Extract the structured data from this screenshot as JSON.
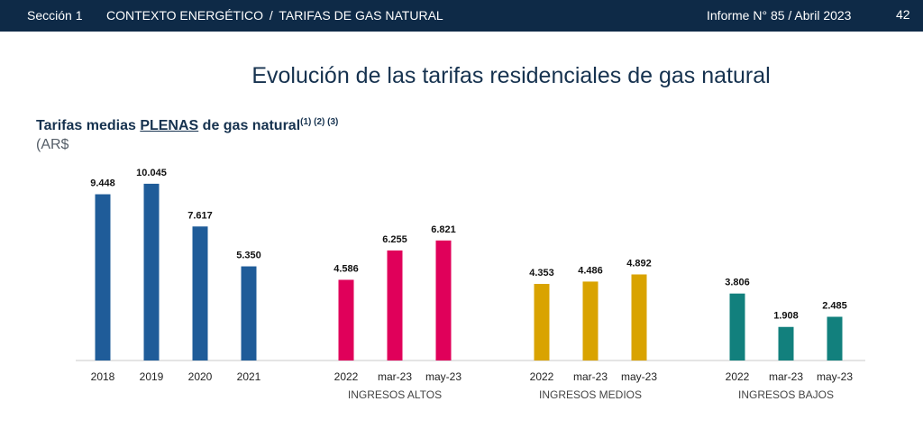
{
  "header": {
    "section": "Sección 1",
    "context": "CONTEXTO ENERGÉTICO",
    "separator": "/",
    "topic": "TARIFAS DE GAS NATURAL",
    "report": "Informe N° 85 / Abril 2023",
    "page_number": "42"
  },
  "page_title": "Evolución de las tarifas residenciales de gas natural",
  "chart_header": {
    "title_prefix": "Tarifas medias ",
    "title_emphasis": "PLENAS",
    "title_suffix": " de gas natural",
    "footnotes": "(1) (2) (3)",
    "units": "(AR$"
  },
  "colors": {
    "header_bg": "#0e2a47",
    "title": "#16324f",
    "historico": "#1f5c99",
    "altos": "#e0005a",
    "medios": "#d9a300",
    "bajos": "#12807d"
  },
  "chart_data": {
    "type": "bar",
    "title": "Tarifas medias PLENAS de gas natural",
    "ylabel": "(AR$",
    "ylim": [
      0,
      10500
    ],
    "grid": false,
    "groups": [
      {
        "name": "",
        "color": "#1f5c99",
        "categories": [
          "2018",
          "2019",
          "2020",
          "2021"
        ],
        "values": [
          9448,
          10045,
          7617,
          5350
        ],
        "labels": [
          "9.448",
          "10.045",
          "7.617",
          "5.350"
        ]
      },
      {
        "name": "INGRESOS ALTOS",
        "color": "#e0005a",
        "categories": [
          "2022",
          "mar-23",
          "may-23"
        ],
        "values": [
          4586,
          6255,
          6821
        ],
        "labels": [
          "4.586",
          "6.255",
          "6.821"
        ]
      },
      {
        "name": "INGRESOS MEDIOS",
        "color": "#d9a300",
        "categories": [
          "2022",
          "mar-23",
          "may-23"
        ],
        "values": [
          4353,
          4486,
          4892
        ],
        "labels": [
          "4.353",
          "4.486",
          "4.892"
        ]
      },
      {
        "name": "INGRESOS BAJOS",
        "color": "#12807d",
        "categories": [
          "2022",
          "mar-23",
          "may-23"
        ],
        "values": [
          3806,
          1908,
          2485
        ],
        "labels": [
          "3.806",
          "1.908",
          "2.485"
        ]
      }
    ]
  }
}
